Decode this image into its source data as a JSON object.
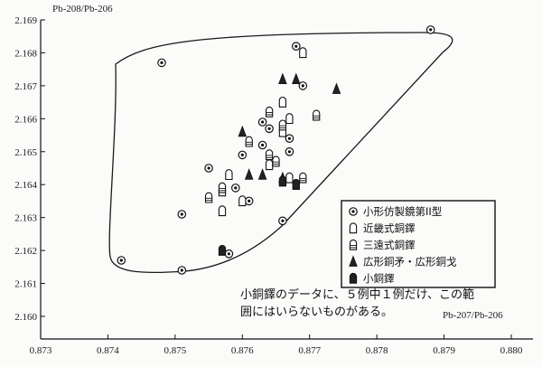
{
  "chart_data": {
    "type": "scatter",
    "title": "",
    "xlabel": "Pb-207/Pb-206",
    "ylabel": "Pb-208/Pb-206",
    "xlim": [
      0.873,
      0.88
    ],
    "ylim": [
      2.16,
      2.169
    ],
    "x_ticks": [
      "0.873",
      "0.874",
      "0.875",
      "0.876",
      "0.877",
      "0.878",
      "0.879",
      "0.880"
    ],
    "y_ticks": [
      "2.169",
      "2.168",
      "2.167",
      "2.166",
      "2.165",
      "2.164",
      "2.163",
      "2.162",
      "2.161",
      "2.160"
    ],
    "grid": false,
    "legend_position": "lower-right",
    "series": [
      {
        "name": "小形仿製鏡第II型",
        "marker": "circle-dot",
        "points": [
          [
            0.8788,
            2.1687
          ],
          [
            0.8748,
            2.1677
          ],
          [
            0.8768,
            2.1682
          ],
          [
            0.8769,
            2.167
          ],
          [
            0.8755,
            2.1645
          ],
          [
            0.8751,
            2.1631
          ],
          [
            0.8742,
            2.1617
          ],
          [
            0.8751,
            2.1614
          ],
          [
            0.8758,
            2.1619
          ],
          [
            0.8766,
            2.1629
          ],
          [
            0.8761,
            2.1635
          ],
          [
            0.8759,
            2.1639
          ],
          [
            0.876,
            2.1649
          ],
          [
            0.8763,
            2.1659
          ],
          [
            0.8764,
            2.1657
          ],
          [
            0.8763,
            2.1652
          ],
          [
            0.8767,
            2.1654
          ],
          [
            0.8767,
            2.165
          ]
        ]
      },
      {
        "name": "近畿式銅鐸",
        "marker": "bell",
        "points": [
          [
            0.8769,
            2.168
          ],
          [
            0.8766,
            2.1665
          ],
          [
            0.8767,
            2.166
          ],
          [
            0.8766,
            2.1656
          ],
          [
            0.8758,
            2.1643
          ],
          [
            0.8757,
            2.1638
          ],
          [
            0.876,
            2.1635
          ],
          [
            0.8757,
            2.1632
          ],
          [
            0.8764,
            2.1646
          ],
          [
            0.8767,
            2.1642
          ]
        ]
      },
      {
        "name": "三遠式銅鐸",
        "marker": "bell-lined",
        "points": [
          [
            0.8771,
            2.1661
          ],
          [
            0.8764,
            2.1662
          ],
          [
            0.8766,
            2.1658
          ],
          [
            0.8761,
            2.1653
          ],
          [
            0.8764,
            2.1649
          ],
          [
            0.8765,
            2.1647
          ],
          [
            0.8755,
            2.1636
          ],
          [
            0.8757,
            2.1639
          ],
          [
            0.8769,
            2.1642
          ]
        ]
      },
      {
        "name": "広形銅矛・広形銅戈",
        "marker": "triangle",
        "points": [
          [
            0.8766,
            2.1672
          ],
          [
            0.8768,
            2.1672
          ],
          [
            0.8774,
            2.1669
          ],
          [
            0.876,
            2.1656
          ],
          [
            0.8761,
            2.1643
          ],
          [
            0.8763,
            2.1643
          ],
          [
            0.8766,
            2.1642
          ]
        ]
      },
      {
        "name": "小銅鐸",
        "marker": "bell-filled",
        "points": [
          [
            0.8757,
            2.162
          ],
          [
            0.8766,
            2.1641
          ],
          [
            0.8768,
            2.164
          ]
        ]
      }
    ],
    "annotation": {
      "line1": "小銅鐸のデータに、５例中１例だけ、この範",
      "line2": "囲にはいらないものがある。"
    }
  }
}
